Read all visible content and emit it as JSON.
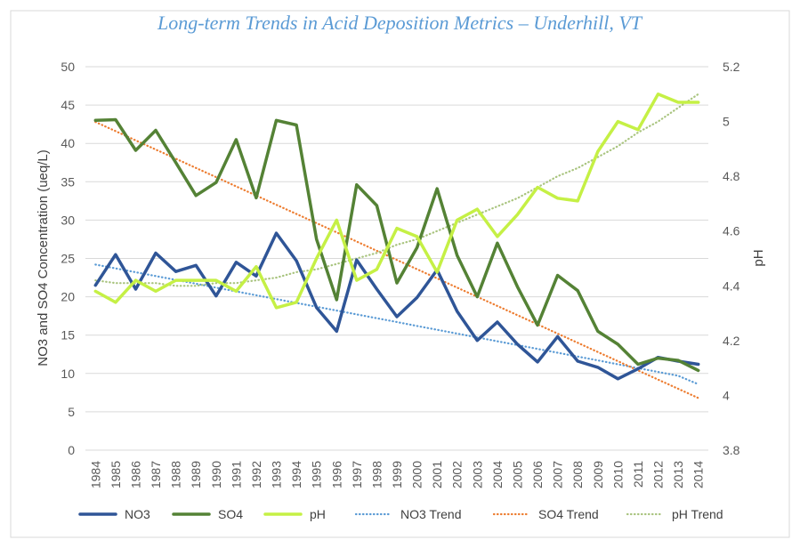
{
  "chart_data": {
    "type": "line",
    "title": "Long-term Trends in Acid Deposition Metrics – Underhill, VT",
    "ylabel": "NO3 and SO4 Concentration (ueq/L)",
    "y2label": "pH",
    "ylim": [
      0,
      50
    ],
    "y2lim": [
      3.8,
      5.2
    ],
    "yticks": [
      "0",
      "5",
      "10",
      "15",
      "20",
      "25",
      "30",
      "35",
      "40",
      "45",
      "50"
    ],
    "y2ticks": [
      "3.8",
      "4",
      "4.2",
      "4.4",
      "4.6",
      "4.8",
      "5",
      "5.2"
    ],
    "categories": [
      "1984",
      "1985",
      "1986",
      "1987",
      "1988",
      "1989",
      "1990",
      "1991",
      "1992",
      "1993",
      "1994",
      "1995",
      "1996",
      "1997",
      "1998",
      "1999",
      "2000",
      "2001",
      "2002",
      "2003",
      "2004",
      "2005",
      "2006",
      "2007",
      "2008",
      "2009",
      "2010",
      "2011",
      "2012",
      "2013",
      "2014"
    ],
    "grid": true,
    "legend_position": "bottom",
    "series": [
      {
        "name": "NO3",
        "axis": "left",
        "style": "solid",
        "color": "#2f5597",
        "values": [
          21.5,
          25.5,
          21.0,
          25.7,
          23.3,
          24.1,
          20.1,
          24.5,
          22.7,
          28.3,
          24.7,
          18.6,
          15.5,
          24.8,
          21.0,
          17.4,
          19.9,
          23.5,
          18.1,
          14.3,
          16.7,
          13.8,
          11.5,
          14.8,
          11.6,
          10.8,
          9.3,
          10.6,
          12.1,
          11.6,
          11.2
        ]
      },
      {
        "name": "SO4",
        "axis": "left",
        "style": "solid",
        "color": "#548235",
        "values": [
          43.0,
          43.1,
          39.1,
          41.7,
          37.5,
          33.2,
          34.9,
          40.5,
          32.9,
          43.0,
          42.4,
          27.5,
          19.6,
          34.6,
          31.9,
          21.8,
          26.4,
          34.1,
          25.4,
          20.0,
          27.0,
          21.3,
          16.3,
          22.8,
          20.8,
          15.5,
          13.8,
          11.2,
          12.0,
          11.7,
          10.4
        ]
      },
      {
        "name": "pH",
        "axis": "right",
        "style": "solid",
        "color": "#c5f045",
        "values": [
          4.38,
          4.34,
          4.42,
          4.38,
          4.42,
          4.42,
          4.42,
          4.38,
          4.47,
          4.32,
          4.34,
          4.5,
          4.64,
          4.42,
          4.46,
          4.61,
          4.58,
          4.45,
          4.64,
          4.68,
          4.58,
          4.66,
          4.76,
          4.72,
          4.71,
          4.89,
          5.0,
          4.97,
          5.1,
          5.07,
          5.07
        ]
      },
      {
        "name": "NO3 Trend",
        "axis": "left",
        "style": "dotted",
        "color": "#5b9bd5",
        "values": [
          24.2,
          23.7,
          23.2,
          22.7,
          22.2,
          21.7,
          21.2,
          20.7,
          20.2,
          19.7,
          19.2,
          18.7,
          18.2,
          17.7,
          17.2,
          16.7,
          16.2,
          15.7,
          15.2,
          14.7,
          14.2,
          13.7,
          13.2,
          12.7,
          12.2,
          11.7,
          11.2,
          10.7,
          10.2,
          9.7,
          8.6
        ]
      },
      {
        "name": "SO4 Trend",
        "axis": "left",
        "style": "dotted",
        "color": "#ed7d31",
        "values": [
          42.8,
          41.6,
          40.4,
          39.2,
          38.0,
          36.8,
          35.6,
          34.4,
          33.2,
          32.0,
          30.8,
          29.6,
          28.4,
          27.2,
          26.0,
          24.8,
          23.6,
          22.4,
          21.2,
          20.0,
          18.8,
          17.6,
          16.4,
          15.2,
          14.0,
          12.8,
          11.6,
          10.4,
          9.2,
          8.0,
          6.8
        ]
      },
      {
        "name": "pH Trend",
        "axis": "right",
        "style": "dotted",
        "color": "#a9c47f",
        "values": [
          4.42,
          4.41,
          4.41,
          4.41,
          4.4,
          4.4,
          4.41,
          4.41,
          4.42,
          4.43,
          4.45,
          4.46,
          4.48,
          4.5,
          4.52,
          4.55,
          4.57,
          4.6,
          4.63,
          4.66,
          4.69,
          4.72,
          4.76,
          4.8,
          4.83,
          4.87,
          4.91,
          4.96,
          5.0,
          5.05,
          5.1
        ]
      }
    ]
  }
}
